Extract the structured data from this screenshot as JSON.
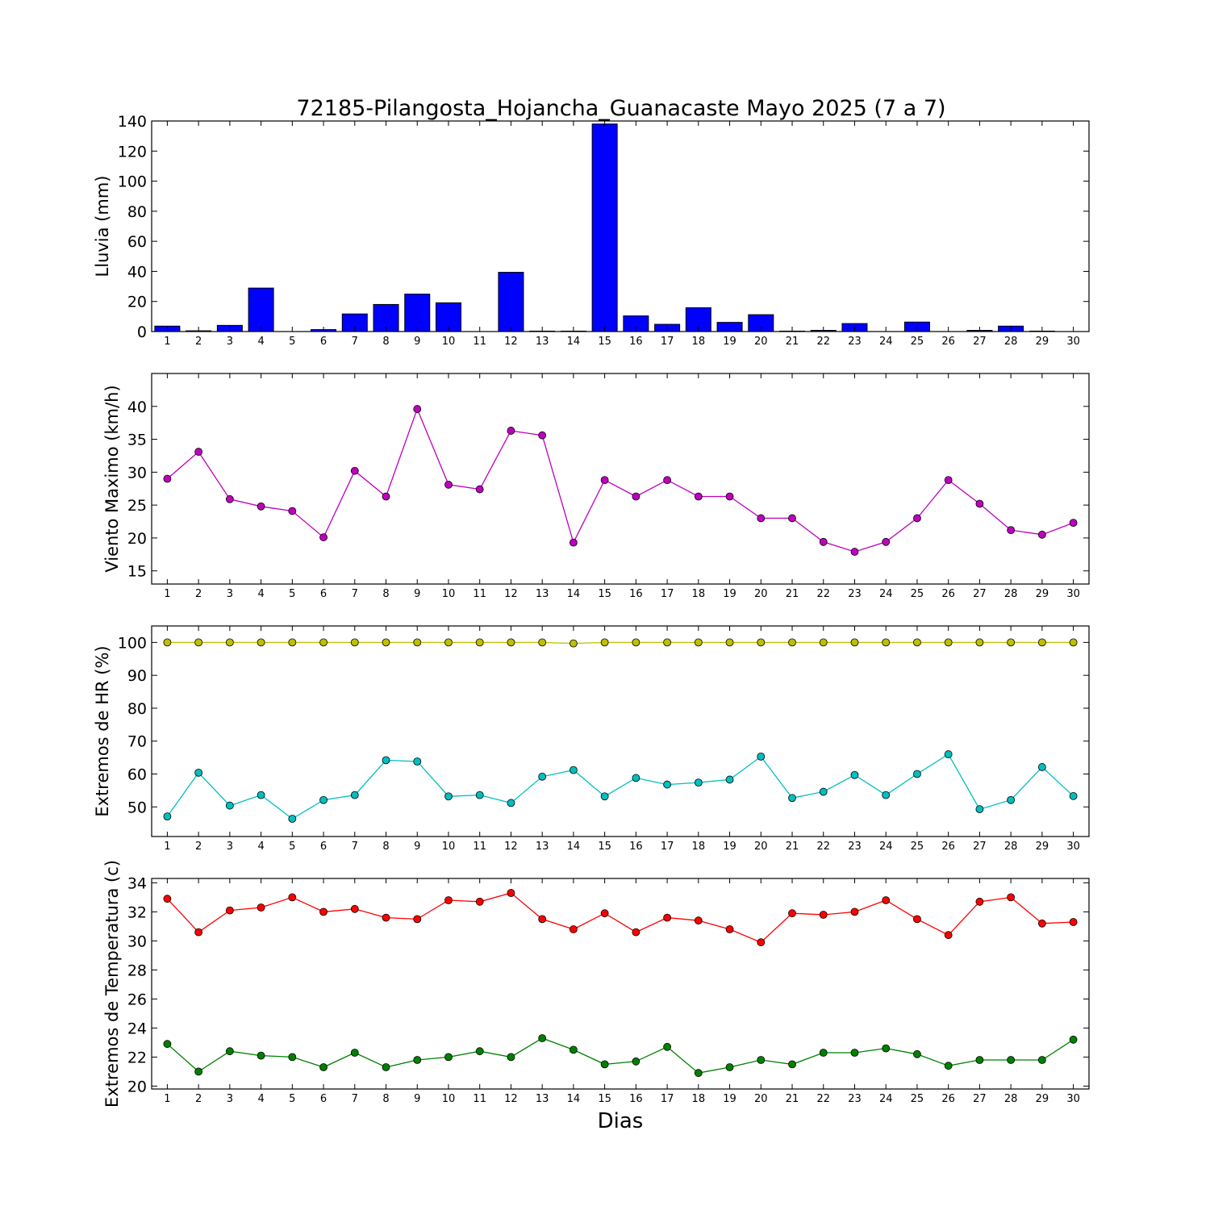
{
  "figure": {
    "title": "72185-Pilangosta_Hojancha_Guanacaste Mayo 2025  (7 a 7)",
    "xlabel": "Dias"
  },
  "chart_data": [
    {
      "type": "bar",
      "ylabel": "Lluvia (mm)",
      "categories": [
        "1",
        "2",
        "3",
        "4",
        "5",
        "6",
        "7",
        "8",
        "9",
        "10",
        "11",
        "12",
        "13",
        "14",
        "15",
        "16",
        "17",
        "18",
        "19",
        "20",
        "21",
        "22",
        "23",
        "24",
        "25",
        "26",
        "27",
        "28",
        "29",
        "30"
      ],
      "ylim": [
        0,
        140
      ],
      "yticks": [
        0,
        20,
        40,
        60,
        80,
        100,
        120,
        140
      ],
      "grid": false,
      "series": [
        {
          "color": "#0000ff",
          "values": [
            3.6,
            0.5,
            4.1,
            28.9,
            0,
            1.3,
            11.7,
            18.0,
            24.9,
            19.1,
            0,
            39.4,
            0.3,
            0.3,
            138.0,
            10.4,
            4.8,
            15.8,
            6.1,
            11.2,
            0.3,
            0.8,
            5.3,
            0,
            6.3,
            0,
            0.8,
            3.6,
            0.3,
            0
          ]
        }
      ]
    },
    {
      "type": "line",
      "ylabel": "Viento Maximo (km/h)",
      "categories": [
        "1",
        "2",
        "3",
        "4",
        "5",
        "6",
        "7",
        "8",
        "9",
        "10",
        "11",
        "12",
        "13",
        "14",
        "15",
        "16",
        "17",
        "18",
        "19",
        "20",
        "21",
        "22",
        "23",
        "24",
        "25",
        "26",
        "27",
        "28",
        "29",
        "30"
      ],
      "ylim": [
        13,
        45
      ],
      "yticks": [
        15,
        20,
        25,
        30,
        35,
        40
      ],
      "grid": false,
      "series": [
        {
          "color": "#bf00bf",
          "values": [
            29.0,
            33.1,
            25.9,
            24.8,
            24.1,
            20.1,
            30.2,
            26.3,
            39.6,
            28.1,
            27.4,
            36.3,
            35.6,
            19.3,
            28.8,
            26.3,
            28.8,
            26.3,
            26.3,
            23.0,
            23.0,
            19.4,
            17.9,
            19.4,
            23.0,
            28.8,
            25.2,
            21.2,
            20.5,
            22.3
          ]
        }
      ]
    },
    {
      "type": "line",
      "ylabel": "Extremos de HR (%)",
      "categories": [
        "1",
        "2",
        "3",
        "4",
        "5",
        "6",
        "7",
        "8",
        "9",
        "10",
        "11",
        "12",
        "13",
        "14",
        "15",
        "16",
        "17",
        "18",
        "19",
        "20",
        "21",
        "22",
        "23",
        "24",
        "25",
        "26",
        "27",
        "28",
        "29",
        "30"
      ],
      "ylim": [
        41,
        105
      ],
      "yticks": [
        50,
        60,
        70,
        80,
        90,
        100
      ],
      "grid": false,
      "series": [
        {
          "color": "#bfbf00",
          "values": [
            100,
            100,
            100,
            100,
            100,
            100,
            100,
            100,
            100,
            100,
            100,
            100,
            100,
            99.7,
            100,
            100,
            100,
            100,
            100,
            100,
            100,
            100,
            100,
            100,
            100,
            100,
            100,
            100,
            100,
            100
          ]
        },
        {
          "color": "#00bfbf",
          "values": [
            47.1,
            60.4,
            50.4,
            53.6,
            46.4,
            52.1,
            53.6,
            64.2,
            63.8,
            53.2,
            53.6,
            51.2,
            59.2,
            61.2,
            53.2,
            58.8,
            56.8,
            57.4,
            58.3,
            65.3,
            52.7,
            54.6,
            59.7,
            53.6,
            60.0,
            66.0,
            49.3,
            52.1,
            62.1,
            53.3
          ]
        }
      ]
    },
    {
      "type": "line",
      "ylabel": "Extremos de Temperatura (c)",
      "categories": [
        "1",
        "2",
        "3",
        "4",
        "5",
        "6",
        "7",
        "8",
        "9",
        "10",
        "11",
        "12",
        "13",
        "14",
        "15",
        "16",
        "17",
        "18",
        "19",
        "20",
        "21",
        "22",
        "23",
        "24",
        "25",
        "26",
        "27",
        "28",
        "29",
        "30"
      ],
      "ylim": [
        19.8,
        34.3
      ],
      "yticks": [
        20,
        22,
        24,
        26,
        28,
        30,
        32,
        34
      ],
      "grid": false,
      "series": [
        {
          "color": "#ff0000",
          "values": [
            32.9,
            30.6,
            32.1,
            32.3,
            33.0,
            32.0,
            32.2,
            31.6,
            31.5,
            32.8,
            32.7,
            33.3,
            31.5,
            30.8,
            31.9,
            30.6,
            31.6,
            31.4,
            30.8,
            29.9,
            31.9,
            31.8,
            32.0,
            32.8,
            31.5,
            30.4,
            32.7,
            33.0,
            31.2,
            31.3
          ]
        },
        {
          "color": "#008000",
          "values": [
            22.9,
            21.0,
            22.4,
            22.1,
            22.0,
            21.3,
            22.3,
            21.3,
            21.8,
            22.0,
            22.4,
            22.0,
            23.3,
            22.5,
            21.5,
            21.7,
            22.7,
            20.9,
            21.3,
            21.8,
            21.5,
            22.3,
            22.3,
            22.6,
            22.2,
            21.4,
            21.8,
            21.8,
            21.8,
            23.2
          ]
        }
      ]
    }
  ]
}
